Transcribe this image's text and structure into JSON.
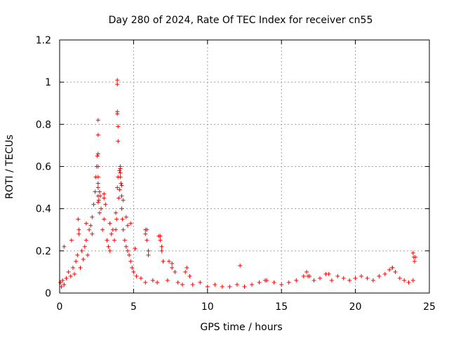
{
  "chart_data": {
    "type": "scatter",
    "title": "Day 280 of 2024, Rate Of TEC Index for receiver cn55",
    "xlabel": "GPS time / hours",
    "ylabel": "ROTI / TECUs",
    "xlim": [
      0,
      25
    ],
    "ylim": [
      0,
      1.2
    ],
    "xticks": [
      0,
      5,
      10,
      15,
      20,
      25
    ],
    "xtick_labels": [
      "0",
      "5",
      "10",
      "15",
      "20",
      "25"
    ],
    "yticks": [
      0,
      0.2,
      0.4,
      0.6,
      0.8,
      1.0,
      1.2
    ],
    "ytick_labels": [
      "0",
      "0.2",
      "0.4",
      "0.6",
      "0.8",
      "1",
      "1.2"
    ],
    "grid": true,
    "marker": "+",
    "color": "#ff0000",
    "series": [
      {
        "name": "ROTI",
        "x": [
          0.05,
          0.12,
          0.2,
          0.3,
          0.45,
          0.6,
          0.75,
          0.9,
          1.0,
          1.1,
          1.2,
          1.25,
          1.3,
          1.4,
          1.5,
          1.6,
          1.7,
          1.8,
          1.9,
          2.0,
          2.1,
          2.2,
          2.3,
          2.4,
          2.45,
          2.5,
          2.55,
          2.6,
          2.65,
          2.7,
          2.75,
          2.8,
          2.9,
          3.0,
          3.1,
          3.2,
          3.3,
          3.4,
          3.5,
          3.6,
          3.7,
          3.8,
          3.85,
          3.9,
          3.95,
          4.0,
          4.05,
          4.1,
          4.15,
          4.2,
          4.25,
          4.3,
          4.4,
          4.5,
          4.6,
          4.7,
          4.8,
          4.9,
          5.0,
          5.2,
          5.5,
          5.8,
          5.9,
          6.0,
          6.3,
          6.6,
          6.8,
          6.9,
          7.0,
          7.3,
          7.6,
          7.8,
          8.0,
          8.3,
          8.6,
          8.8,
          9.0,
          9.5,
          10.0,
          10.5,
          11.0,
          11.5,
          12.0,
          12.5,
          13.0,
          13.5,
          14.0,
          14.5,
          15.0,
          15.5,
          16.0,
          16.5,
          16.7,
          16.9,
          17.2,
          17.6,
          18.0,
          18.4,
          18.8,
          19.2,
          19.6,
          20.0,
          20.4,
          20.8,
          21.2,
          21.6,
          22.0,
          22.3,
          22.5,
          22.7,
          23.0,
          23.3,
          23.6,
          23.9,
          24.0,
          24.05,
          0.3,
          0.8,
          1.3,
          1.8,
          2.2,
          2.6,
          2.6,
          2.6,
          2.6,
          2.6,
          2.6,
          2.6,
          2.6,
          2.7,
          3.0,
          3.0,
          3.4,
          3.8,
          3.9,
          3.9,
          3.9,
          3.9,
          3.95,
          3.95,
          4.05,
          4.1,
          4.1,
          4.1,
          4.2,
          4.2,
          4.3,
          4.5,
          4.6,
          4.8,
          5.1,
          5.8,
          5.8,
          5.9,
          6.0,
          6.7,
          6.8,
          6.9,
          7.4,
          7.6,
          8.5,
          12.2,
          13.9,
          16.8,
          18.2,
          22.5,
          23.9,
          23.95
        ],
        "y": [
          0.05,
          0.03,
          0.06,
          0.04,
          0.07,
          0.1,
          0.08,
          0.12,
          0.09,
          0.15,
          0.18,
          0.35,
          0.3,
          0.12,
          0.2,
          0.16,
          0.22,
          0.25,
          0.18,
          0.3,
          0.32,
          0.28,
          0.42,
          0.48,
          0.55,
          0.6,
          0.65,
          0.52,
          0.44,
          0.38,
          0.46,
          0.4,
          0.3,
          0.35,
          0.42,
          0.25,
          0.22,
          0.2,
          0.28,
          0.3,
          0.25,
          0.3,
          0.35,
          0.5,
          0.55,
          0.45,
          0.58,
          0.6,
          0.52,
          0.4,
          0.35,
          0.3,
          0.25,
          0.22,
          0.2,
          0.18,
          0.15,
          0.12,
          0.1,
          0.08,
          0.07,
          0.05,
          0.3,
          0.2,
          0.06,
          0.05,
          0.27,
          0.2,
          0.15,
          0.06,
          0.14,
          0.1,
          0.05,
          0.04,
          0.12,
          0.08,
          0.04,
          0.05,
          0.03,
          0.04,
          0.03,
          0.03,
          0.04,
          0.03,
          0.04,
          0.05,
          0.06,
          0.05,
          0.04,
          0.05,
          0.06,
          0.08,
          0.1,
          0.08,
          0.06,
          0.07,
          0.09,
          0.06,
          0.08,
          0.07,
          0.06,
          0.07,
          0.08,
          0.07,
          0.06,
          0.08,
          0.09,
          0.11,
          0.12,
          0.1,
          0.07,
          0.06,
          0.05,
          0.06,
          0.15,
          0.17,
          0.22,
          0.25,
          0.28,
          0.33,
          0.36,
          0.82,
          0.75,
          0.66,
          0.6,
          0.55,
          0.5,
          0.46,
          0.43,
          0.48,
          0.47,
          0.45,
          0.33,
          0.38,
          1.01,
          0.99,
          0.86,
          0.85,
          0.79,
          0.72,
          0.49,
          0.57,
          0.59,
          0.55,
          0.51,
          0.46,
          0.44,
          0.36,
          0.32,
          0.33,
          0.21,
          0.3,
          0.28,
          0.25,
          0.18,
          0.27,
          0.25,
          0.22,
          0.15,
          0.12,
          0.1,
          0.13,
          0.06,
          0.08,
          0.09,
          0.12,
          0.19,
          0.17
        ]
      }
    ]
  }
}
